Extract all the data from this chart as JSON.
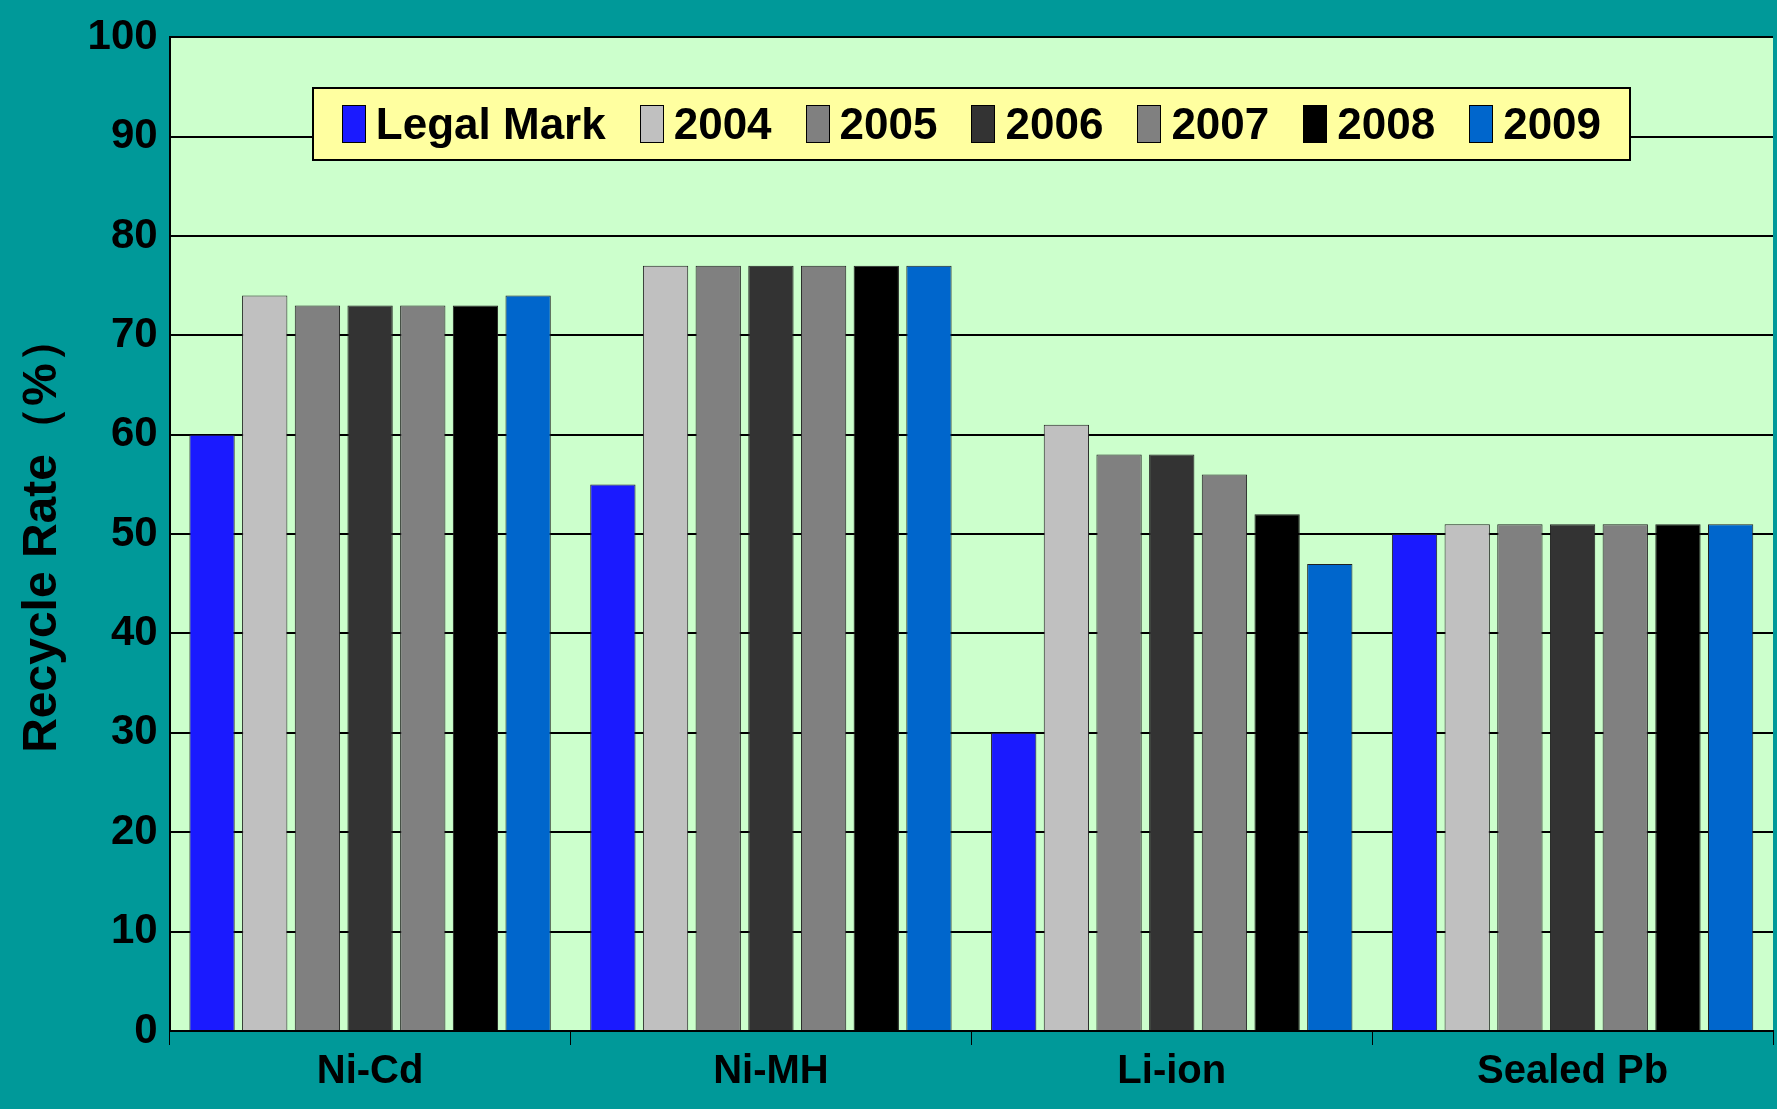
{
  "chart_data": {
    "type": "bar",
    "ylabel": "Recycle Rate（%）",
    "categories": [
      "Ni-Cd",
      "Ni-MH",
      "Li-ion",
      "Sealed Pb"
    ],
    "series": [
      {
        "name": "Legal Mark",
        "color": "#1a1aff",
        "values": [
          60,
          55,
          30,
          50
        ]
      },
      {
        "name": "2004",
        "color": "#c0c0c0",
        "values": [
          74,
          77,
          61,
          51
        ]
      },
      {
        "name": "2005",
        "color": "#808080",
        "values": [
          73,
          77,
          58,
          51
        ]
      },
      {
        "name": "2006",
        "color": "#333333",
        "values": [
          73,
          77,
          58,
          51
        ]
      },
      {
        "name": "2007",
        "color": "#808080",
        "values": [
          73,
          77,
          56,
          51
        ]
      },
      {
        "name": "2008",
        "color": "#000000",
        "values": [
          73,
          77,
          52,
          51
        ]
      },
      {
        "name": "2009",
        "color": "#0066cc",
        "values": [
          74,
          77,
          47,
          51
        ]
      }
    ],
    "ylim": [
      0,
      100
    ],
    "yticks": [
      0,
      10,
      20,
      30,
      40,
      50,
      60,
      70,
      80,
      90,
      100
    ],
    "grid": "y",
    "legend": "top"
  }
}
